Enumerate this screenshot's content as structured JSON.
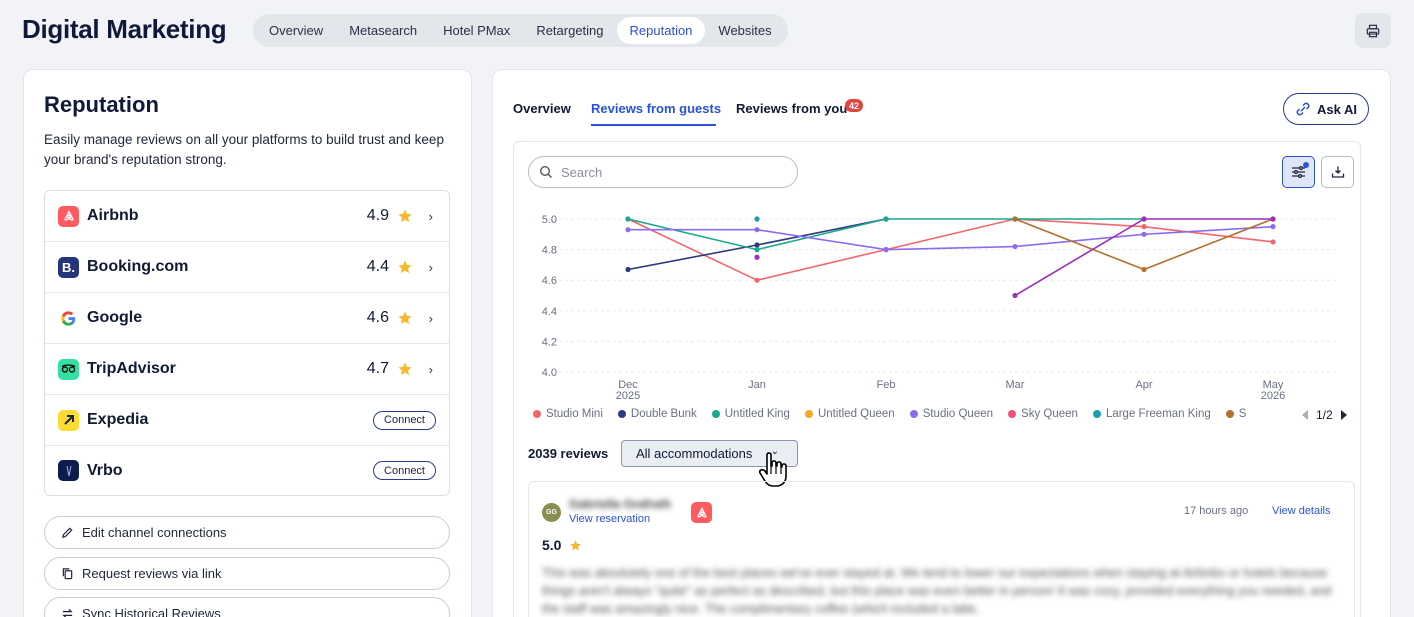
{
  "header": {
    "title": "Digital Marketing",
    "tabs": [
      "Overview",
      "Metasearch",
      "Hotel PMax",
      "Retargeting",
      "Reputation",
      "Websites"
    ],
    "active_tab": "Reputation"
  },
  "left": {
    "title": "Reputation",
    "description": "Easily manage reviews on all your platforms to build trust and keep your brand's reputation strong.",
    "platforms": [
      {
        "name": "Airbnb",
        "rating": "4.9",
        "connected": true
      },
      {
        "name": "Booking.com",
        "rating": "4.4",
        "connected": true
      },
      {
        "name": "Google",
        "rating": "4.6",
        "connected": true
      },
      {
        "name": "TripAdvisor",
        "rating": "4.7",
        "connected": true
      },
      {
        "name": "Expedia",
        "connect_label": "Connect",
        "connected": false
      },
      {
        "name": "Vrbo",
        "connect_label": "Connect",
        "connected": false
      }
    ],
    "actions": [
      "Edit channel connections",
      "Request reviews via link",
      "Sync Historical Reviews"
    ]
  },
  "right": {
    "tabs": [
      "Overview",
      "Reviews from guests",
      "Reviews from you"
    ],
    "active_tab": "Reviews from guests",
    "badge_count": "42",
    "ask_ai_label": "Ask AI",
    "search_placeholder": "Search",
    "legend_page": "1/2",
    "reviews_count": "2039 reviews",
    "accommodation_filter": "All accommodations",
    "review": {
      "avatar_initials": "GG",
      "reviewer": "Gabriella Grafrath",
      "view_reservation": "View reservation",
      "time_ago": "17 hours ago",
      "view_details": "View details",
      "rating": "5.0",
      "text": "This was absolutely one of the best places we've ever stayed at. We tend to lower our expectations when staying at Airbnbs or hotels because things aren't always \"quite\" as perfect as described, but this place was even better in person! It was cozy, provided everything you needed, and the staff was amazingly nice. The complimentary coffee (which included a latte,"
    }
  },
  "chart_data": {
    "type": "line",
    "x": [
      "Dec 2025",
      "Jan",
      "Feb",
      "Mar",
      "Apr",
      "May 2026"
    ],
    "x_tick_lines": [
      [
        "Dec",
        "2025"
      ],
      [
        "Jan"
      ],
      [
        "Feb"
      ],
      [
        "Mar"
      ],
      [
        "Apr"
      ],
      [
        "May",
        "2026"
      ]
    ],
    "ylim": [
      4.0,
      5.0
    ],
    "yticks": [
      "5.0",
      "4.8",
      "4.6",
      "4.4",
      "4.2",
      "4.0"
    ],
    "grid": true,
    "legend_position": "bottom",
    "series": [
      {
        "name": "Studio Mini",
        "color": "#f2676b",
        "values": [
          5.0,
          4.6,
          4.8,
          5.0,
          4.95,
          4.85
        ]
      },
      {
        "name": "Double Bunk",
        "color": "#2c3a80",
        "values": [
          4.67,
          4.83,
          5.0,
          null,
          null,
          null
        ]
      },
      {
        "name": "Untitled King",
        "color": "#1aa88a",
        "values": [
          5.0,
          4.8,
          5.0,
          5.0,
          5.0,
          null
        ]
      },
      {
        "name": "Untitled Queen",
        "color": "#f5a623",
        "values": [
          null,
          5.0,
          null,
          null,
          null,
          null
        ]
      },
      {
        "name": "Studio Queen",
        "color": "#8b6cf0",
        "values": [
          4.93,
          4.93,
          4.8,
          4.82,
          4.9,
          4.95
        ]
      },
      {
        "name": "Sky Queen",
        "color": "#f0507a",
        "values": [
          null,
          null,
          null,
          null,
          null,
          null
        ]
      },
      {
        "name": "Large Freeman King",
        "color": "#1a9fae",
        "values": [
          null,
          5.0,
          null,
          null,
          null,
          null
        ]
      },
      {
        "name": "S",
        "color": "#b4702c",
        "values": [
          null,
          null,
          null,
          5.0,
          4.67,
          5.0
        ]
      },
      {
        "name": "",
        "color": "#9b2fb8",
        "values": [
          null,
          4.75,
          null,
          4.5,
          5.0,
          5.0
        ]
      }
    ]
  }
}
